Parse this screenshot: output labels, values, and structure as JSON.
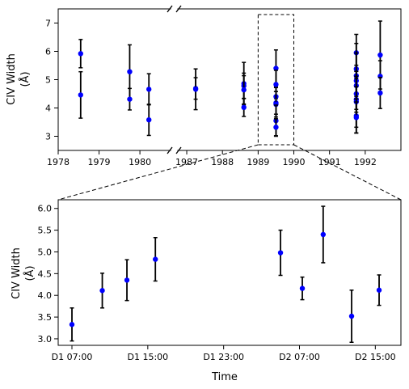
{
  "chart_data": [
    {
      "type": "scatter",
      "panel": "top",
      "ylabel_line1": "CIV Width",
      "ylabel_line2": "(Å)",
      "xlabel": "",
      "ylim": [
        2.5,
        7.5
      ],
      "yticks": [
        3,
        4,
        5,
        6,
        7
      ],
      "xticks_left": [
        1978,
        1979,
        1980
      ],
      "xticks_right": [
        1987,
        1988,
        1989,
        1990,
        1991,
        1992
      ],
      "xlim_left": [
        1978.0,
        1980.75
      ],
      "xlim_right": [
        1986.75,
        1993.0
      ],
      "axis_break": "1980–1987",
      "highlight_box": {
        "x": [
          1989.0,
          1990.0
        ],
        "y": [
          2.7,
          7.3
        ]
      },
      "marker_color": "#0000ff",
      "errorbar_color": "#000000",
      "points": [
        {
          "x": 1978.55,
          "y": 5.92,
          "err": 0.5
        },
        {
          "x": 1978.55,
          "y": 4.46,
          "err": 0.82
        },
        {
          "x": 1979.75,
          "y": 5.28,
          "err": 0.95
        },
        {
          "x": 1979.75,
          "y": 4.31,
          "err": 0.38
        },
        {
          "x": 1980.22,
          "y": 4.66,
          "err": 0.55
        },
        {
          "x": 1980.22,
          "y": 3.58,
          "err": 0.55
        },
        {
          "x": 1987.25,
          "y": 4.69,
          "err": 0.38
        },
        {
          "x": 1987.25,
          "y": 4.66,
          "err": 0.72
        },
        {
          "x": 1988.6,
          "y": 4.86,
          "err": 0.75
        },
        {
          "x": 1988.6,
          "y": 4.78,
          "err": 0.45
        },
        {
          "x": 1988.6,
          "y": 4.64,
          "err": 0.5
        },
        {
          "x": 1988.6,
          "y": 4.02,
          "err": 0.32
        },
        {
          "x": 1989.5,
          "y": 5.4,
          "err": 0.65
        },
        {
          "x": 1989.5,
          "y": 4.83,
          "err": 0.5
        },
        {
          "x": 1989.5,
          "y": 4.4,
          "err": 0.32
        },
        {
          "x": 1989.5,
          "y": 4.18,
          "err": 0.4
        },
        {
          "x": 1989.5,
          "y": 4.13,
          "err": 0.45
        },
        {
          "x": 1989.5,
          "y": 3.55,
          "err": 0.55
        },
        {
          "x": 1989.5,
          "y": 3.32,
          "err": 0.3
        },
        {
          "x": 1991.75,
          "y": 5.95,
          "err": 0.65
        },
        {
          "x": 1991.75,
          "y": 5.38,
          "err": 0.9
        },
        {
          "x": 1991.75,
          "y": 5.14,
          "err": 0.8
        },
        {
          "x": 1991.75,
          "y": 4.96,
          "err": 0.55
        },
        {
          "x": 1991.75,
          "y": 4.79,
          "err": 0.5
        },
        {
          "x": 1991.75,
          "y": 4.5,
          "err": 0.55
        },
        {
          "x": 1991.75,
          "y": 4.3,
          "err": 0.45
        },
        {
          "x": 1991.75,
          "y": 4.22,
          "err": 0.9
        },
        {
          "x": 1991.75,
          "y": 3.72,
          "err": 0.6
        },
        {
          "x": 1991.75,
          "y": 3.66,
          "err": 0.55
        },
        {
          "x": 1992.42,
          "y": 5.87,
          "err": 1.2
        },
        {
          "x": 1992.42,
          "y": 5.12,
          "err": 0.55
        },
        {
          "x": 1992.42,
          "y": 4.53,
          "err": 0.55
        }
      ]
    },
    {
      "type": "scatter",
      "panel": "bottom",
      "ylabel_line1": "CIV Width",
      "ylabel_line2": "(Å)",
      "xlabel": "Time",
      "xtick_values_hours": [
        7,
        15,
        23,
        31,
        39
      ],
      "xtick_labels": [
        "D1 07:00",
        "D1 15:00",
        "D1 23:00",
        "D2 07:00",
        "D2 15:00"
      ],
      "xlim_hours": [
        5.55,
        41.7
      ],
      "ylim": [
        2.85,
        6.2
      ],
      "yticks": [
        "3.0",
        "3.5",
        "4.0",
        "4.5",
        "5.0",
        "5.5",
        "6.0"
      ],
      "marker_color": "#0000ff",
      "errorbar_color": "#000000",
      "points": [
        {
          "x": 7.0,
          "y": 3.33,
          "err": 0.38
        },
        {
          "x": 10.2,
          "y": 4.11,
          "err": 0.4
        },
        {
          "x": 12.8,
          "y": 4.35,
          "err": 0.47
        },
        {
          "x": 15.8,
          "y": 4.83,
          "err": 0.5
        },
        {
          "x": 29.0,
          "y": 4.98,
          "err": 0.52
        },
        {
          "x": 31.3,
          "y": 4.16,
          "err": 0.26
        },
        {
          "x": 33.5,
          "y": 5.4,
          "err": 0.65
        },
        {
          "x": 36.5,
          "y": 3.52,
          "err": 0.6
        },
        {
          "x": 39.4,
          "y": 4.12,
          "err": 0.35
        }
      ]
    }
  ]
}
